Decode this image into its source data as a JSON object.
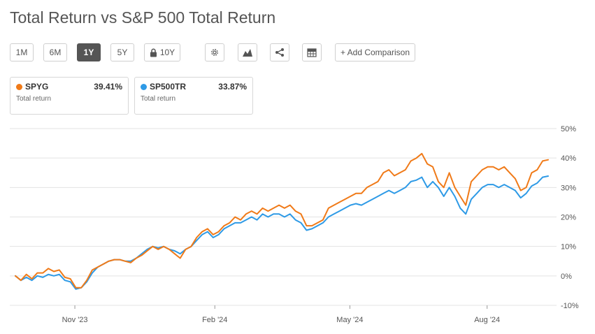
{
  "title": "Total Return vs S&P 500 Total Return",
  "ranges": [
    "1M",
    "6M",
    "1Y",
    "5Y",
    "10Y"
  ],
  "active_range": "1Y",
  "toolbar": {
    "add_comparison": "+ Add Comparison"
  },
  "legend": [
    {
      "symbol": "SPYG",
      "value": "39.41%",
      "sub": "Total return",
      "color": "#f07a18"
    },
    {
      "symbol": "SP500TR",
      "value": "33.87%",
      "sub": "Total return",
      "color": "#2e9ae6"
    }
  ],
  "chart_data": {
    "type": "line",
    "title": "Total Return vs S&P 500 Total Return",
    "x_ticks": [
      "Nov '23",
      "Feb '24",
      "May '24",
      "Aug '24"
    ],
    "y_ticks": [
      "50%",
      "40%",
      "30%",
      "20%",
      "10%",
      "0%",
      "-10%"
    ],
    "ylim": [
      -10,
      50
    ],
    "ygrid": true,
    "series": [
      {
        "name": "SPYG",
        "color": "#f07a18",
        "values": [
          0.0,
          -1.5,
          0.5,
          -1.0,
          1.0,
          1.0,
          2.5,
          1.5,
          2.0,
          -0.5,
          -1.0,
          -4.0,
          -4.0,
          -1.5,
          2.0,
          3.0,
          4.0,
          5.0,
          5.5,
          5.5,
          5.0,
          4.5,
          6.0,
          7.0,
          8.5,
          10.0,
          9.0,
          10.0,
          9.0,
          7.5,
          6.0,
          9.0,
          10.0,
          13.0,
          15.0,
          16.0,
          14.0,
          15.0,
          17.0,
          18.0,
          20.0,
          19.0,
          21.0,
          22.0,
          21.0,
          23.0,
          22.0,
          23.0,
          24.0,
          23.0,
          24.0,
          22.0,
          21.0,
          17.0,
          17.0,
          18.0,
          19.0,
          23.0,
          24.0,
          25.0,
          26.0,
          27.0,
          28.0,
          28.0,
          30.0,
          31.0,
          32.0,
          35.0,
          36.0,
          34.0,
          35.0,
          36.0,
          39.0,
          40.0,
          41.5,
          38.0,
          37.0,
          32.0,
          30.0,
          35.0,
          30.0,
          27.0,
          24.0,
          32.0,
          34.0,
          36.0,
          37.0,
          37.0,
          36.0,
          37.0,
          35.0,
          33.0,
          29.0,
          30.0,
          35.0,
          36.0,
          39.0,
          39.4
        ]
      },
      {
        "name": "SP500TR",
        "color": "#2e9ae6",
        "values": [
          0.0,
          -1.5,
          -0.5,
          -1.5,
          0.0,
          -0.5,
          0.5,
          0.0,
          0.5,
          -1.5,
          -2.0,
          -4.5,
          -4.0,
          -2.0,
          1.0,
          3.0,
          4.0,
          5.0,
          5.5,
          5.5,
          5.0,
          5.0,
          6.0,
          7.5,
          9.0,
          10.0,
          9.5,
          10.0,
          9.0,
          8.5,
          7.5,
          9.0,
          10.0,
          12.0,
          14.0,
          15.0,
          13.0,
          14.0,
          16.0,
          17.0,
          18.0,
          18.0,
          19.0,
          20.0,
          19.0,
          21.0,
          20.0,
          21.0,
          21.0,
          20.0,
          21.0,
          19.0,
          18.0,
          15.5,
          16.0,
          17.0,
          18.0,
          20.0,
          21.0,
          22.0,
          23.0,
          24.0,
          24.5,
          24.0,
          25.0,
          26.0,
          27.0,
          28.0,
          29.0,
          28.0,
          29.0,
          30.0,
          32.0,
          32.5,
          33.5,
          30.0,
          32.0,
          30.0,
          27.0,
          30.0,
          27.0,
          23.0,
          21.0,
          26.0,
          28.0,
          30.0,
          31.0,
          31.0,
          30.0,
          31.0,
          30.0,
          29.0,
          26.5,
          28.0,
          30.5,
          31.5,
          33.5,
          33.87
        ]
      }
    ]
  }
}
